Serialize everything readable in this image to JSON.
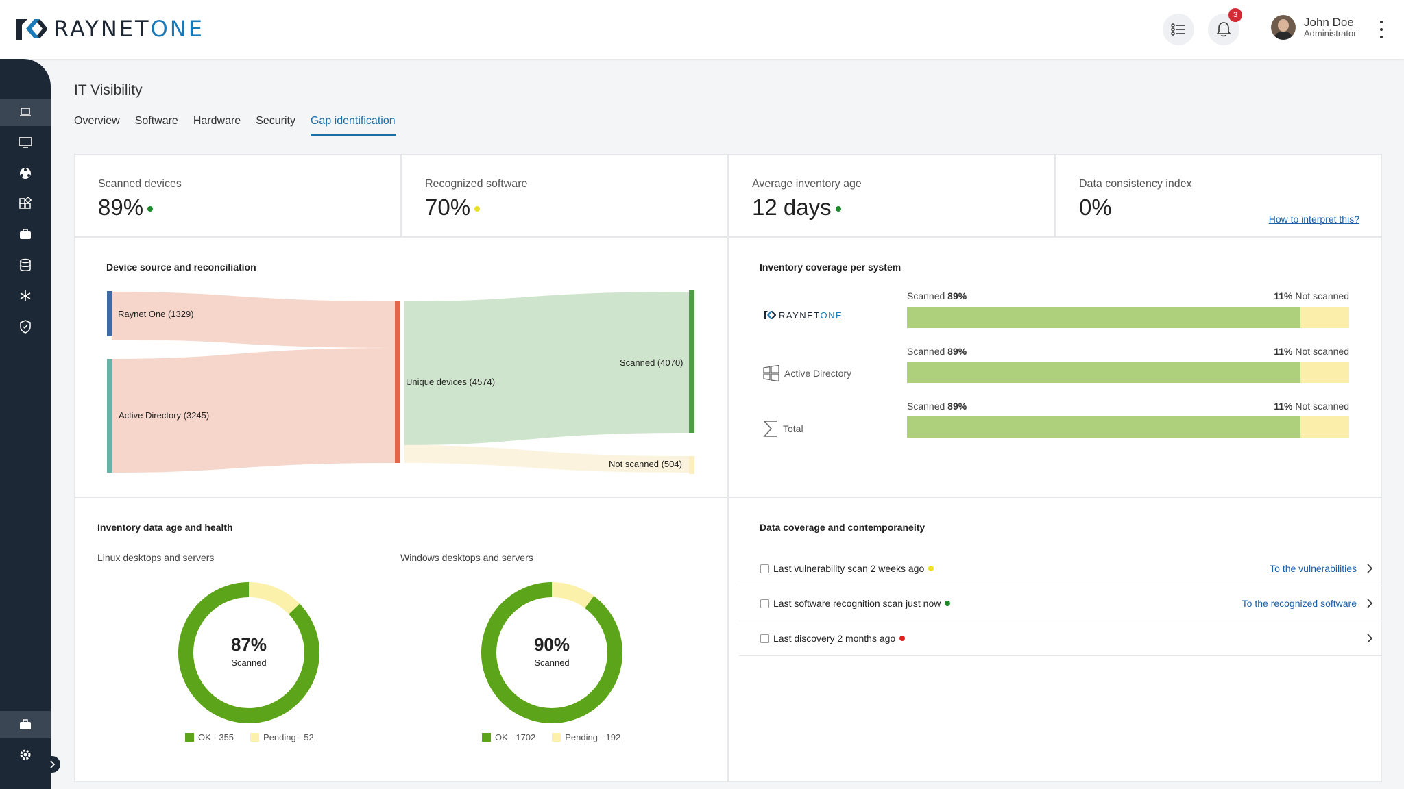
{
  "app": {
    "logo_text_main": "RAYNET",
    "logo_text_accent": "ONE"
  },
  "header": {
    "notifications_count": "3",
    "user_name": "John Doe",
    "user_role": "Administrator"
  },
  "page": {
    "title": "IT Visibility",
    "tabs": [
      {
        "label": "Overview"
      },
      {
        "label": "Software"
      },
      {
        "label": "Hardware"
      },
      {
        "label": "Security"
      },
      {
        "label": "Gap identification",
        "active": true
      }
    ]
  },
  "kpis": [
    {
      "label": "Scanned devices",
      "value": "89%",
      "status_color": "#1e8a2c"
    },
    {
      "label": "Recognized software",
      "value": "70%",
      "status_color": "#e8e02a"
    },
    {
      "label": "Average inventory age",
      "value": "12 days",
      "status_color": "#1e8a2c"
    },
    {
      "label": "Data consistency index",
      "value": "0%",
      "link": "How to interpret this?"
    }
  ],
  "sankey": {
    "title": "Device source and reconciliation",
    "nodes": {
      "raynet": "Raynet One (1329)",
      "ad": "Active Directory (3245)",
      "unique": "Unique devices (4574)",
      "scanned": "Scanned (4070)",
      "not_scanned": "Not scanned (504)"
    }
  },
  "coverage": {
    "title": "Inventory coverage per system",
    "rows": [
      {
        "system": "RAYNETONE",
        "system_accent": "ONE",
        "system_main": "RAYNET",
        "scanned_label": "Scanned",
        "scanned_pct": "89%",
        "not_pct": "11%",
        "not_label": "Not scanned",
        "fraction": 0.89
      },
      {
        "system": "Active Directory",
        "scanned_label": "Scanned",
        "scanned_pct": "89%",
        "not_pct": "11%",
        "not_label": "Not scanned",
        "fraction": 0.89
      },
      {
        "system": "Total",
        "scanned_label": "Scanned",
        "scanned_pct": "89%",
        "not_pct": "11%",
        "not_label": "Not scanned",
        "fraction": 0.89
      }
    ]
  },
  "age_health": {
    "title": "Inventory data age and health",
    "charts": [
      {
        "subtitle": "Linux desktops and servers",
        "pct": "87%",
        "center_label": "Scanned",
        "ok_label": "OK - 355",
        "pending_label": "Pending - 52",
        "ok": 355,
        "pending": 52
      },
      {
        "subtitle": "Windows desktops and servers",
        "pct": "90%",
        "center_label": "Scanned",
        "ok_label": "OK - 1702",
        "pending_label": "Pending - 192",
        "ok": 1702,
        "pending": 192
      }
    ]
  },
  "contemporaneity": {
    "title": "Data coverage and contemporaneity",
    "rows": [
      {
        "text": "Last vulnerability scan 2 weeks ago",
        "status_color": "#eee21c",
        "link": "To the vulnerabilities"
      },
      {
        "text": "Last software recognition scan just now",
        "status_color": "#1e8a2c",
        "link": "To the recognized software"
      },
      {
        "text": "Last discovery 2 months ago",
        "status_color": "#e02020",
        "link": ""
      }
    ]
  },
  "colors": {
    "ok": "#5ca41a",
    "pending": "#fcf1aa",
    "accent": "#1a6fa8"
  }
}
